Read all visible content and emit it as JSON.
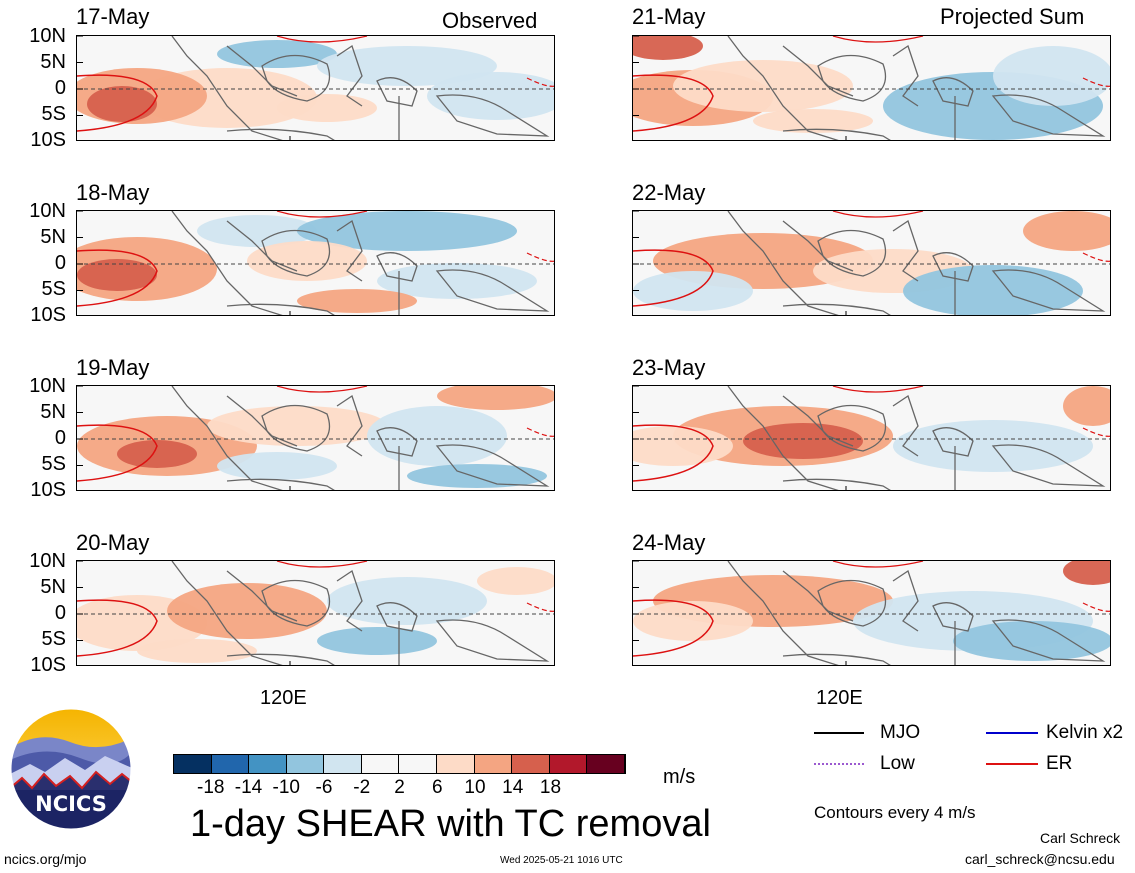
{
  "headers": {
    "left": "Observed",
    "right": "Projected Sum"
  },
  "y_ticks": [
    "10N",
    "5N",
    "0",
    "5S",
    "10S"
  ],
  "x_tick": "120E",
  "panels": [
    {
      "date": "17-May",
      "col": 0,
      "row": 0
    },
    {
      "date": "18-May",
      "col": 0,
      "row": 1
    },
    {
      "date": "19-May",
      "col": 0,
      "row": 2
    },
    {
      "date": "20-May",
      "col": 0,
      "row": 3
    },
    {
      "date": "21-May",
      "col": 1,
      "row": 0
    },
    {
      "date": "22-May",
      "col": 1,
      "row": 1
    },
    {
      "date": "23-May",
      "col": 1,
      "row": 2
    },
    {
      "date": "24-May",
      "col": 1,
      "row": 3
    }
  ],
  "colorbar": {
    "colors": [
      "#053061",
      "#2166ac",
      "#4393c3",
      "#92c5de",
      "#d1e5f0",
      "#f7f7f7",
      "#f7f7f7",
      "#fddbc7",
      "#f4a582",
      "#d6604d",
      "#b2182b",
      "#67001f"
    ],
    "labels": [
      "-18",
      "-14",
      "-10",
      "-6",
      "-2",
      "2",
      "6",
      "10",
      "14",
      "18"
    ],
    "units": "m/s"
  },
  "title": "1-day SHEAR with TC removal",
  "legend": {
    "items": [
      {
        "label": "MJO",
        "color": "#000000"
      },
      {
        "label": "Kelvin x2",
        "color": "#0000cc"
      },
      {
        "label": "Low",
        "color": "#9b59d0"
      },
      {
        "label": "ER",
        "color": "#dd1111"
      }
    ],
    "note": "Contours every 4 m/s"
  },
  "logo": {
    "text": "NCICS"
  },
  "footer": {
    "url": "ncics.org/mjo",
    "timestamp": "Wed 2025-05-21 1016 UTC",
    "author": "Carl Schreck",
    "email": "carl_schreck@ncsu.edu"
  },
  "chart_data": {
    "type": "heatmap",
    "title": "1-day SHEAR with TC removal",
    "units": "m/s",
    "latitude_ticks": [
      "10N",
      "5N",
      "0",
      "5S",
      "10S"
    ],
    "longitude_tick": "120E",
    "color_levels": [
      -18,
      -14,
      -10,
      -6,
      -2,
      2,
      6,
      10,
      14,
      18
    ],
    "contour_interval": "4 m/s",
    "panels_observed": [
      "17-May",
      "18-May",
      "19-May",
      "20-May"
    ],
    "panels_projected": [
      "21-May",
      "22-May",
      "23-May",
      "24-May"
    ]
  }
}
